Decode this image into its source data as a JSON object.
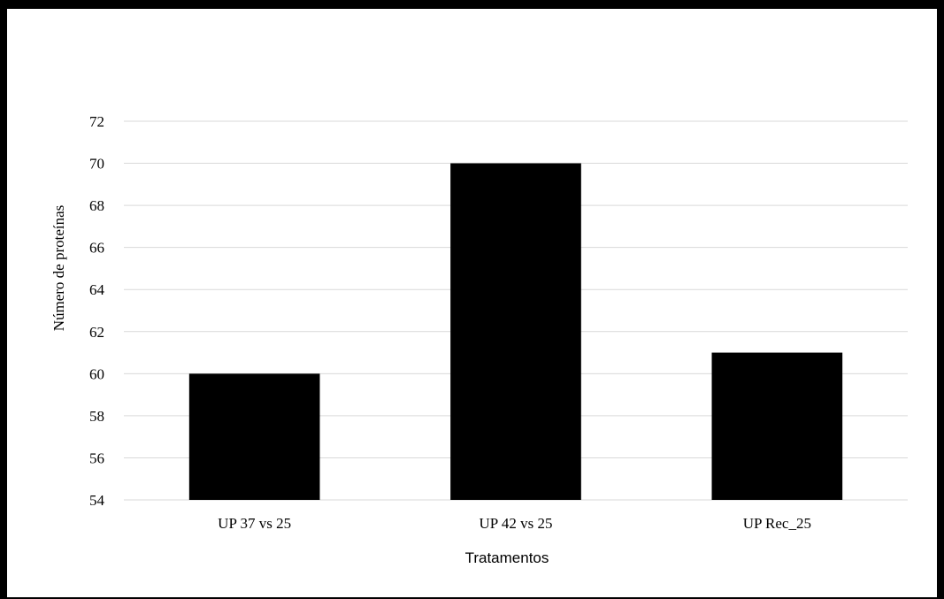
{
  "chart_data": {
    "type": "bar",
    "categories": [
      "UP 37 vs 25",
      "UP 42 vs 25",
      "UP Rec_25"
    ],
    "values": [
      60,
      70,
      61
    ],
    "xlabel": "Tratamentos",
    "ylabel": "Número de proteínas",
    "ylim": [
      54,
      72
    ],
    "yticks": [
      54,
      56,
      58,
      60,
      62,
      64,
      66,
      68,
      70,
      72
    ],
    "grid": true,
    "legend": "none",
    "bar_color": "#000000",
    "grid_color": "#d9d9d9"
  }
}
